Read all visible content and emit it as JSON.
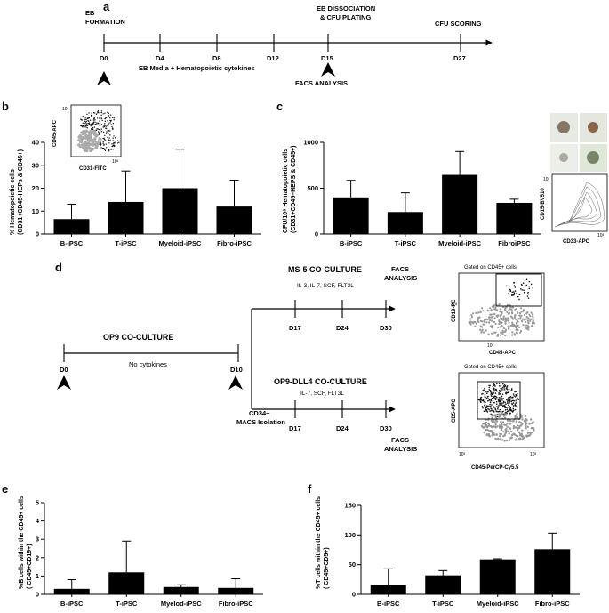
{
  "panels": {
    "a": {
      "letter": "a",
      "eb_formation_1": "EB",
      "eb_formation_2": "FORMATION",
      "eb_dissociation_1": "EB DISSOCIATION",
      "eb_dissociation_2": "& CFU PLATING",
      "cfu_scoring": "CFU SCORING",
      "days": [
        "D0",
        "D4",
        "D8",
        "D12",
        "D15",
        "D27"
      ],
      "media_label": "EB Media + Hematopoietic cytokines",
      "facs_label": "FACS ANALYSIS"
    },
    "b": {
      "letter": "b",
      "ylabel_1": "% Hematopoietic cells",
      "ylabel_2": "(CD31+CD45-HEPs & CD45+)",
      "inset_y": "CD45-APC",
      "inset_x": "CD31-FITC",
      "inset_tick": "10³"
    },
    "c": {
      "letter": "c",
      "ylabel_1": "CFU/10⁵ Hematopoietic cells",
      "ylabel_2": "(CD31+CD45–HEPS & CD45+)",
      "inset_y": "CD15-BV510",
      "inset_x": "CD33-APC",
      "inset_tick": "10³"
    },
    "d": {
      "letter": "d",
      "op9_title": "OP9 CO-CULTURE",
      "no_cytokines": "No cytokines",
      "d0": "D0",
      "d10": "D10",
      "cd34_1": "CD34+",
      "cd34_2": "MACS Isolation",
      "ms5_title": "MS-5 CO-CULTURE",
      "ms5_cytokines": "IL-3, IL-7, SCF, FLT3L",
      "dll4_title": "OP9-DLL4  CO-CULTURE",
      "dll4_cytokines": "IL-7, SCF, FLT3L",
      "days_top": [
        "D17",
        "D24",
        "D30"
      ],
      "days_bottom": [
        "D17",
        "D24",
        "D30"
      ],
      "facs_1": "FACS",
      "facs_2": "ANALYSIS",
      "gated_label": "Gated on CD45+ cells",
      "flow_top_y": "CD19-PE",
      "flow_top_x": "CD45-APC",
      "flow_bottom_y": "CD5-APC",
      "flow_bottom_x": "CD45-PerCP-Cy5.5",
      "tick": "10³"
    },
    "e": {
      "letter": "e",
      "ylabel_1": "%B cells within the CD45+ cells",
      "ylabel_2": "( CD45+CD19+)"
    },
    "f": {
      "letter": "f",
      "ylabel_1": "%T cells within the CD45+ cells",
      "ylabel_2": "( CD45+CD5+)"
    }
  },
  "chart_data": [
    {
      "id": "b",
      "type": "bar",
      "categories": [
        "B-iPSC",
        "T-iPSC",
        "Myeloid-iPSC",
        "Fibro-iPSC"
      ],
      "values": [
        6.5,
        14,
        20,
        12
      ],
      "errors": [
        6.5,
        13.5,
        17,
        11.5
      ],
      "ylim": [
        0,
        40
      ],
      "yticks": [
        0,
        10,
        20,
        30,
        40
      ],
      "ytick_labels": [
        "0",
        "10",
        "20",
        "30",
        "40"
      ],
      "ylabel": "% Hematopoietic cells (CD31+CD45-HEPs & CD45+)"
    },
    {
      "id": "c",
      "type": "bar",
      "categories": [
        "B-iPSC",
        "T-iPSC",
        "Myeloid-iPSC",
        "FibroiPSC"
      ],
      "values": [
        400,
        240,
        645,
        340
      ],
      "errors": [
        185,
        210,
        255,
        40
      ],
      "ylim": [
        0,
        1000
      ],
      "yticks": [
        0,
        500,
        1000
      ],
      "ytick_labels": [
        "0",
        "500",
        "1000"
      ],
      "ylabel": "CFU/10^5 Hematopoietic cells (CD31+CD45-HEPS & CD45+)"
    },
    {
      "id": "e",
      "type": "bar",
      "categories": [
        "B-iPSC",
        "T-iPSC",
        "Myelod-iPSC",
        "Fibro-iPSC"
      ],
      "values": [
        0.3,
        1.2,
        0.4,
        0.35
      ],
      "errors": [
        0.5,
        1.7,
        0.12,
        0.5
      ],
      "ylim": [
        0,
        5
      ],
      "yticks": [
        0,
        1,
        2,
        3,
        4,
        5
      ],
      "ytick_labels": [
        "0",
        "1",
        "2",
        "3",
        "4",
        "5"
      ],
      "ylabel": "%B cells within the CD45+ cells ( CD45+CD19+)"
    },
    {
      "id": "f",
      "type": "bar",
      "categories": [
        "B-iPSC",
        "T-iPSC",
        "Myeloid-iPSC",
        "Fibro-iPSC"
      ],
      "values": [
        16,
        32,
        59,
        76
      ],
      "errors": [
        27,
        8,
        1,
        27
      ],
      "ylim": [
        0,
        150
      ],
      "yticks": [
        0,
        50,
        100,
        150
      ],
      "ytick_labels": [
        "0",
        "50",
        "100",
        "150"
      ],
      "ylabel": "%T cells within the CD45+ cells ( CD45+CD5+)"
    }
  ]
}
